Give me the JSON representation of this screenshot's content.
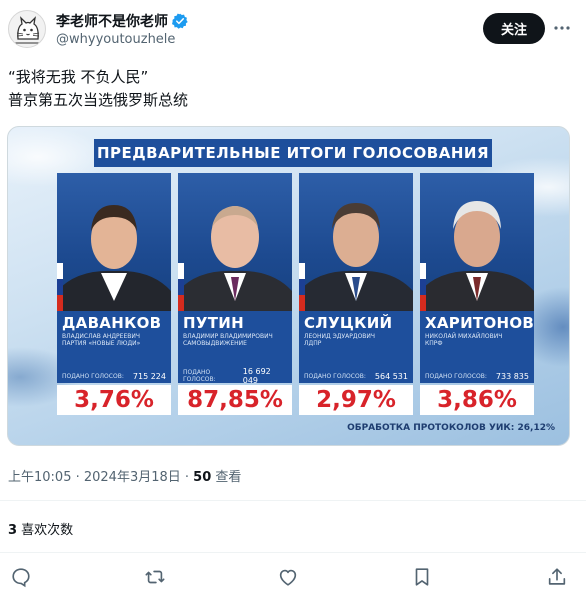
{
  "tweet": {
    "author": {
      "display_name": "李老师不是你老师",
      "handle": "@whyyoutouzhele",
      "verified": true
    },
    "follow_label": "关注",
    "text_lines": [
      "“我将无我 不负人民”",
      "普京第五次当选俄罗斯总统"
    ],
    "meta": {
      "time": "上午10:05 · 2024年3月18日 · ",
      "views_count": "50",
      "views_label": " 查看"
    },
    "likes": {
      "count": "3",
      "label": " 喜欢次数"
    }
  },
  "media": {
    "banner": "ПРЕДВАРИТЕЛЬНЫЕ ИТОГИ ГОЛОСОВАНИЯ",
    "votes_label": "ПОДАНО ГОЛОСОВ:",
    "candidates": [
      {
        "name": "ДАВАНКОВ",
        "full_name": "ВЛАДИСЛАВ АНДРЕЕВИЧ",
        "party": "ПАРТИЯ «НОВЫЕ ЛЮДИ»",
        "votes": "715 224",
        "percent": "3,76%"
      },
      {
        "name": "ПУТИН",
        "full_name": "ВЛАДИМИР ВЛАДИМИРОВИЧ",
        "party": "САМОВЫДВИЖЕНИЕ",
        "votes": "16 692 049",
        "percent": "87,85%"
      },
      {
        "name": "СЛУЦКИЙ",
        "full_name": "ЛЕОНИД ЭДУАРДОВИЧ",
        "party": "ЛДПР",
        "votes": "564 531",
        "percent": "2,97%"
      },
      {
        "name": "ХАРИТОНОВ",
        "full_name": "НИКОЛАЙ МИХАЙЛОВИЧ",
        "party": "КПРФ",
        "votes": "733 835",
        "percent": "3,86%"
      }
    ],
    "processing": "ОБРАБОТКА ПРОТОКОЛОВ УИК: 26,12%"
  },
  "actions": [
    "reply-icon",
    "retweet-icon",
    "like-icon",
    "bookmark-icon",
    "share-icon"
  ],
  "colors": {
    "accent_dark": "#0f1419",
    "muted": "#536471",
    "verified": "#1d9bf0",
    "banner_blue": "#1e4f9c",
    "percent_red": "#d8232a"
  }
}
